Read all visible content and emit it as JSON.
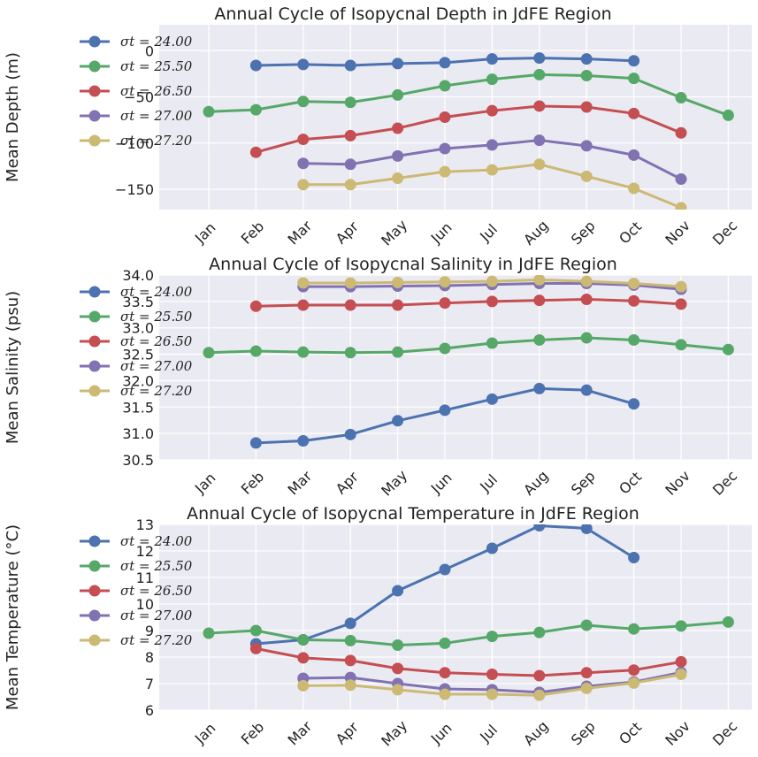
{
  "colors": {
    "background": "#EAEAF2",
    "grid": "#FFFFFF",
    "series": [
      "#4C72B0",
      "#55A868",
      "#C44E52",
      "#8172B2",
      "#CCB974"
    ]
  },
  "chart_data": [
    {
      "type": "line",
      "title": "Annual Cycle of Isopycnal Depth in JdFE Region",
      "ylabel": "Mean Depth (m)",
      "xlabel": "",
      "categories": [
        "Jan",
        "Feb",
        "Mar",
        "Apr",
        "May",
        "Jun",
        "Jul",
        "Aug",
        "Sep",
        "Oct",
        "Nov",
        "Dec"
      ],
      "ylim": [
        -172,
        28
      ],
      "yticks": [
        0,
        -50,
        -100,
        -150
      ],
      "ytick_labels": [
        "0",
        "−50",
        "−100",
        "−150"
      ],
      "grid": true,
      "legend_position": "upper-left",
      "series": [
        {
          "name": "σt = 24.00",
          "values": [
            null,
            -16,
            -15,
            -16,
            -14,
            -13,
            -9,
            -8,
            -9,
            -11,
            null,
            null
          ]
        },
        {
          "name": "σt = 25.50",
          "values": [
            -66,
            -64,
            -55,
            -56,
            -48,
            -38,
            -31,
            -26,
            -27,
            -30,
            -51,
            -70
          ]
        },
        {
          "name": "σt = 26.50",
          "values": [
            null,
            -110,
            -96,
            -92,
            -84,
            -72,
            -65,
            -60,
            -61,
            -68,
            -89,
            null
          ]
        },
        {
          "name": "σt = 27.00",
          "values": [
            null,
            null,
            -122,
            -123,
            -114,
            -106,
            -102,
            -97,
            -103,
            -113,
            -139,
            null
          ]
        },
        {
          "name": "σt = 27.20",
          "values": [
            null,
            null,
            -145,
            -145,
            -138,
            -131,
            -129,
            -123,
            -136,
            -149,
            -170,
            null
          ]
        }
      ]
    },
    {
      "type": "line",
      "title": "Annual Cycle of Isopycnal Salinity in JdFE Region",
      "ylabel": "Mean Salinity (psu)",
      "xlabel": "",
      "categories": [
        "Jan",
        "Feb",
        "Mar",
        "Apr",
        "May",
        "Jun",
        "Jul",
        "Aug",
        "Sep",
        "Oct",
        "Nov",
        "Dec"
      ],
      "ylim": [
        30.5,
        34.0
      ],
      "yticks": [
        30.5,
        31.0,
        31.5,
        32.0,
        32.5,
        33.0,
        33.5,
        34.0
      ],
      "ytick_labels": [
        "30.5",
        "31.0",
        "31.5",
        "32.0",
        "32.5",
        "33.0",
        "33.5",
        "34.0"
      ],
      "grid": true,
      "legend_position": "upper-left",
      "series": [
        {
          "name": "σt = 24.00",
          "values": [
            null,
            30.82,
            30.86,
            30.98,
            31.24,
            31.44,
            31.65,
            31.85,
            31.82,
            31.56,
            null,
            null
          ]
        },
        {
          "name": "σt = 25.50",
          "values": [
            32.53,
            32.56,
            32.54,
            32.53,
            32.54,
            32.61,
            32.71,
            32.77,
            32.81,
            32.77,
            32.68,
            32.59
          ]
        },
        {
          "name": "σt = 26.50",
          "values": [
            null,
            33.41,
            33.43,
            33.43,
            33.43,
            33.47,
            33.5,
            33.52,
            33.54,
            33.51,
            33.45,
            null
          ]
        },
        {
          "name": "σt = 27.00",
          "values": [
            null,
            null,
            33.78,
            33.78,
            33.79,
            33.8,
            33.82,
            33.84,
            33.84,
            33.81,
            33.73,
            null
          ]
        },
        {
          "name": "σt = 27.20",
          "values": [
            null,
            null,
            33.85,
            33.85,
            33.86,
            33.87,
            33.88,
            33.91,
            33.88,
            33.84,
            33.78,
            null
          ]
        }
      ]
    },
    {
      "type": "line",
      "title": "Annual Cycle of Isopycnal Temperature in JdFE Region",
      "ylabel": "Mean Temperature (°C)",
      "xlabel": "",
      "categories": [
        "Jan",
        "Feb",
        "Mar",
        "Apr",
        "May",
        "Jun",
        "Jul",
        "Aug",
        "Sep",
        "Oct",
        "Nov",
        "Dec"
      ],
      "ylim": [
        6,
        13
      ],
      "yticks": [
        6,
        7,
        8,
        9,
        10,
        11,
        12,
        13
      ],
      "ytick_labels": [
        "6",
        "7",
        "8",
        "9",
        "10",
        "11",
        "12",
        "13"
      ],
      "grid": true,
      "legend_position": "upper-left",
      "series": [
        {
          "name": "σt = 24.00",
          "values": [
            null,
            8.5,
            8.65,
            9.27,
            10.5,
            11.3,
            12.1,
            12.95,
            12.85,
            11.75,
            null,
            null
          ]
        },
        {
          "name": "σt = 25.50",
          "values": [
            8.9,
            9.0,
            8.65,
            8.62,
            8.45,
            8.52,
            8.78,
            8.93,
            9.2,
            9.06,
            9.17,
            9.32
          ]
        },
        {
          "name": "σt = 26.50",
          "values": [
            null,
            8.32,
            7.97,
            7.87,
            7.57,
            7.41,
            7.35,
            7.3,
            7.41,
            7.51,
            7.82,
            null
          ]
        },
        {
          "name": "σt = 27.00",
          "values": [
            null,
            null,
            7.2,
            7.23,
            7.0,
            6.8,
            6.77,
            6.67,
            6.9,
            7.06,
            7.42,
            null
          ]
        },
        {
          "name": "σt = 27.20",
          "values": [
            null,
            null,
            6.92,
            6.94,
            6.77,
            6.6,
            6.6,
            6.56,
            6.82,
            7.02,
            7.35,
            null
          ]
        }
      ]
    }
  ]
}
